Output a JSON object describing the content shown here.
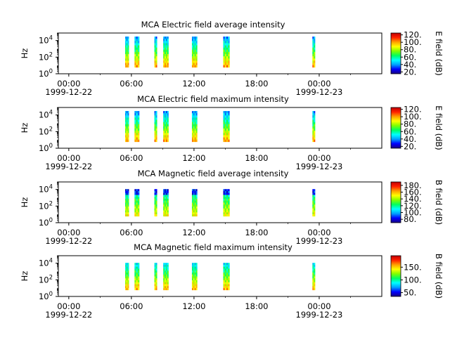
{
  "figure": {
    "xticks": [
      {
        "label": "00:00",
        "date": "1999-12-22"
      },
      {
        "label": "06:00",
        "date": ""
      },
      {
        "label": "12:00",
        "date": ""
      },
      {
        "label": "18:00",
        "date": ""
      },
      {
        "label": "00:00",
        "date": "1999-12-23"
      }
    ],
    "minor_ticks_hours": [
      3,
      9,
      15,
      21,
      27
    ],
    "colormap": [
      "#1a0080",
      "#0000ff",
      "#00a0ff",
      "#00ffff",
      "#00ff60",
      "#80ff00",
      "#ffff00",
      "#ffa000",
      "#ff2000",
      "#c00000"
    ]
  },
  "chart_data": [
    {
      "type": "heatmap",
      "title": "MCA  Electric field average intensity",
      "ylabel": "Hz",
      "yscale": "log",
      "ylim": [
        1,
        80000
      ],
      "yticks": [
        {
          "base": "10",
          "exp": "0",
          "value": 1
        },
        {
          "base": "10",
          "exp": "2",
          "value": 100
        },
        {
          "base": "10",
          "exp": "4",
          "value": 10000
        }
      ],
      "xlim_hours": [
        -1,
        30
      ],
      "x_start": "1999-12-22T00:00",
      "colorbar": {
        "label": "E field (dB)",
        "range": [
          15,
          125
        ],
        "ticks": [
          20,
          40,
          60,
          80,
          100,
          120
        ],
        "tick_labels": [
          "20.",
          "40.",
          "60.",
          "80.",
          "100.",
          "120."
        ]
      },
      "data_range_hz": [
        6,
        30000
      ],
      "segments_hours": [
        [
          5.4,
          5.75
        ],
        [
          6.3,
          6.75
        ],
        [
          8.2,
          8.45
        ],
        [
          9.05,
          9.55
        ],
        [
          11.8,
          12.3
        ],
        [
          14.8,
          15.4
        ],
        [
          23.35,
          23.6
        ]
      ]
    },
    {
      "type": "heatmap",
      "title": "MCA  Electric field maximum intensity",
      "ylabel": "Hz",
      "yscale": "log",
      "ylim": [
        1,
        80000
      ],
      "yticks": [
        {
          "base": "10",
          "exp": "0",
          "value": 1
        },
        {
          "base": "10",
          "exp": "2",
          "value": 100
        },
        {
          "base": "10",
          "exp": "4",
          "value": 10000
        }
      ],
      "xlim_hours": [
        -1,
        30
      ],
      "x_start": "1999-12-22T00:00",
      "colorbar": {
        "label": "E field (dB)",
        "range": [
          15,
          125
        ],
        "ticks": [
          20,
          40,
          60,
          80,
          100,
          120
        ],
        "tick_labels": [
          "20.",
          "40.",
          "60.",
          "80.",
          "100.",
          "120."
        ]
      },
      "data_range_hz": [
        6,
        30000
      ],
      "segments_hours": [
        [
          5.4,
          5.75
        ],
        [
          6.3,
          6.75
        ],
        [
          8.2,
          8.45
        ],
        [
          9.05,
          9.55
        ],
        [
          11.8,
          12.3
        ],
        [
          14.8,
          15.4
        ],
        [
          23.35,
          23.6
        ]
      ]
    },
    {
      "type": "heatmap",
      "title": "MCA  Magnetic field average intensity",
      "ylabel": "Hz",
      "yscale": "log",
      "ylim": [
        1,
        80000
      ],
      "yticks": [
        {
          "base": "10",
          "exp": "0",
          "value": 1
        },
        {
          "base": "10",
          "exp": "2",
          "value": 100
        },
        {
          "base": "10",
          "exp": "4",
          "value": 10000
        }
      ],
      "xlim_hours": [
        -1,
        30
      ],
      "x_start": "1999-12-22T00:00",
      "colorbar": {
        "label": "B field (dB)",
        "range": [
          70,
          190
        ],
        "ticks": [
          80,
          100,
          120,
          140,
          160,
          180
        ],
        "tick_labels": [
          "80.",
          "100.",
          "120.",
          "140.",
          "160.",
          "180."
        ]
      },
      "data_range_hz": [
        6,
        11000
      ],
      "segments_hours": [
        [
          5.4,
          5.75
        ],
        [
          6.3,
          6.75
        ],
        [
          8.2,
          8.45
        ],
        [
          9.05,
          9.55
        ],
        [
          11.8,
          12.3
        ],
        [
          14.8,
          15.4
        ],
        [
          23.35,
          23.6
        ]
      ]
    },
    {
      "type": "heatmap",
      "title": "MCA  Magnetic field maximum intensity",
      "ylabel": "Hz",
      "yscale": "log",
      "ylim": [
        1,
        80000
      ],
      "yticks": [
        {
          "base": "10",
          "exp": "0",
          "value": 1
        },
        {
          "base": "10",
          "exp": "2",
          "value": 100
        },
        {
          "base": "10",
          "exp": "4",
          "value": 10000
        }
      ],
      "xlim_hours": [
        -1,
        30
      ],
      "x_start": "1999-12-22T00:00",
      "colorbar": {
        "label": "B field (dB)",
        "range": [
          35,
          195
        ],
        "ticks": [
          50,
          100,
          150
        ],
        "tick_labels": [
          "50.",
          "100.",
          "150."
        ]
      },
      "data_range_hz": [
        6,
        11000
      ],
      "segments_hours": [
        [
          5.4,
          5.75
        ],
        [
          6.3,
          6.75
        ],
        [
          8.2,
          8.45
        ],
        [
          9.05,
          9.55
        ],
        [
          11.8,
          12.3
        ],
        [
          14.8,
          15.4
        ],
        [
          23.35,
          23.6
        ]
      ]
    }
  ]
}
